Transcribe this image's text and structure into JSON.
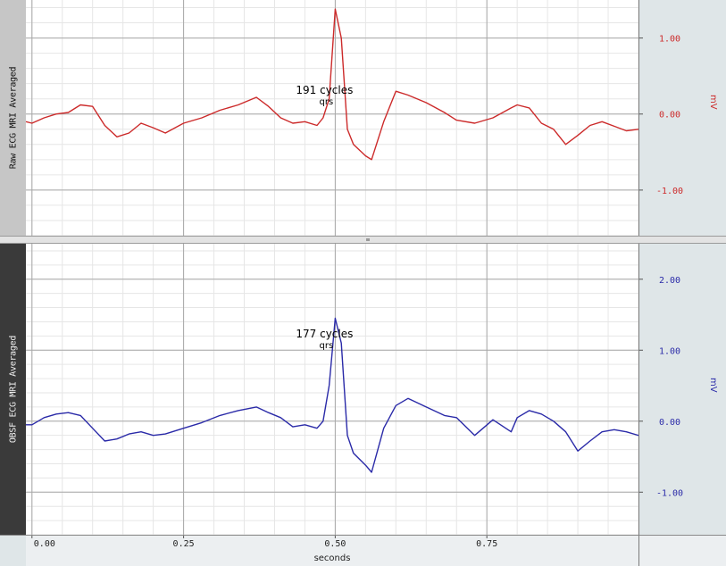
{
  "charts": {
    "top": {
      "label": "Raw ECG MRI Averaged",
      "unit": "mV",
      "color": "#cc2a2a",
      "ylim": [
        -1.6,
        1.5
      ],
      "yticks": [
        1.0,
        0.0,
        -1.0
      ],
      "ytick_labels": [
        "1.00",
        "0.00",
        "-1.00"
      ],
      "annotation": {
        "count": "191 cycles",
        "marker": "qrs",
        "x": 0.5
      }
    },
    "bottom": {
      "label": "OBSF ECG MRI Averaged",
      "unit": "mV",
      "color": "#2a2aa8",
      "ylim": [
        -1.6,
        2.5
      ],
      "yticks": [
        2.0,
        1.0,
        0.0,
        -1.0
      ],
      "ytick_labels": [
        "2.00",
        "1.00",
        "0.00",
        "-1.00"
      ],
      "annotation": {
        "count": "177 cycles",
        "marker": "qrs",
        "x": 0.5
      }
    }
  },
  "x_axis": {
    "label": "seconds",
    "xlim": [
      -0.01,
      1.0
    ],
    "ticks": [
      0.0,
      0.25,
      0.5,
      0.75
    ],
    "tick_labels": [
      "0.00",
      "0.25",
      "0.50",
      "0.75"
    ]
  },
  "chart_data": [
    {
      "type": "line",
      "ylabel": "mV",
      "xlabel": "seconds",
      "xlim": [
        -0.01,
        1.0
      ],
      "ylim": [
        -1.6,
        1.5
      ],
      "grid": true,
      "series": [
        {
          "name": "Raw ECG MRI Averaged",
          "x": [
            -0.01,
            0.0,
            0.02,
            0.04,
            0.06,
            0.08,
            0.1,
            0.12,
            0.14,
            0.16,
            0.18,
            0.2,
            0.22,
            0.25,
            0.28,
            0.31,
            0.34,
            0.37,
            0.39,
            0.41,
            0.43,
            0.45,
            0.47,
            0.48,
            0.49,
            0.5,
            0.51,
            0.52,
            0.53,
            0.55,
            0.56,
            0.58,
            0.6,
            0.62,
            0.65,
            0.68,
            0.7,
            0.73,
            0.76,
            0.79,
            0.8,
            0.82,
            0.84,
            0.86,
            0.88,
            0.9,
            0.92,
            0.94,
            0.96,
            0.98,
            1.0
          ],
          "y": [
            -0.1,
            -0.12,
            -0.05,
            0.0,
            0.02,
            0.12,
            0.1,
            -0.15,
            -0.3,
            -0.25,
            -0.12,
            -0.18,
            -0.25,
            -0.12,
            -0.05,
            0.05,
            0.12,
            0.22,
            0.1,
            -0.05,
            -0.12,
            -0.1,
            -0.15,
            -0.05,
            0.2,
            1.38,
            1.0,
            -0.2,
            -0.4,
            -0.55,
            -0.6,
            -0.1,
            0.3,
            0.25,
            0.15,
            0.02,
            -0.08,
            -0.12,
            -0.05,
            0.08,
            0.12,
            0.08,
            -0.12,
            -0.2,
            -0.4,
            -0.28,
            -0.15,
            -0.1,
            -0.16,
            -0.22,
            -0.2
          ]
        }
      ]
    },
    {
      "type": "line",
      "ylabel": "mV",
      "xlabel": "seconds",
      "xlim": [
        -0.01,
        1.0
      ],
      "ylim": [
        -1.6,
        2.5
      ],
      "grid": true,
      "series": [
        {
          "name": "OBSF ECG MRI Averaged",
          "x": [
            -0.01,
            0.0,
            0.02,
            0.04,
            0.06,
            0.08,
            0.1,
            0.12,
            0.14,
            0.16,
            0.18,
            0.2,
            0.22,
            0.25,
            0.28,
            0.31,
            0.34,
            0.37,
            0.39,
            0.41,
            0.43,
            0.45,
            0.47,
            0.48,
            0.49,
            0.5,
            0.51,
            0.52,
            0.53,
            0.55,
            0.56,
            0.58,
            0.6,
            0.62,
            0.65,
            0.68,
            0.7,
            0.73,
            0.76,
            0.79,
            0.8,
            0.82,
            0.84,
            0.86,
            0.88,
            0.9,
            0.92,
            0.94,
            0.96,
            0.98,
            1.0
          ],
          "y": [
            -0.05,
            -0.05,
            0.05,
            0.1,
            0.12,
            0.08,
            -0.1,
            -0.28,
            -0.25,
            -0.18,
            -0.15,
            -0.2,
            -0.18,
            -0.1,
            -0.02,
            0.08,
            0.15,
            0.2,
            0.12,
            0.05,
            -0.08,
            -0.05,
            -0.1,
            0.0,
            0.5,
            1.45,
            1.1,
            -0.2,
            -0.45,
            -0.62,
            -0.72,
            -0.1,
            0.22,
            0.32,
            0.2,
            0.08,
            0.05,
            -0.2,
            0.02,
            -0.15,
            0.05,
            0.15,
            0.1,
            0.0,
            -0.15,
            -0.42,
            -0.28,
            -0.15,
            -0.12,
            -0.15,
            -0.2
          ]
        }
      ]
    }
  ]
}
